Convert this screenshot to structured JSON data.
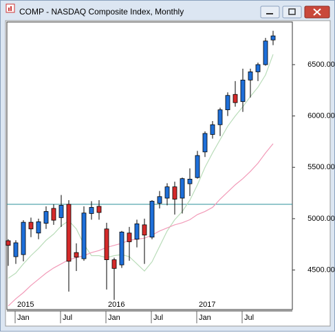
{
  "chart_data": {
    "type": "candlestick",
    "title": "COMP - NASDAQ Composite Index, Monthly",
    "categories": [
      null,
      "Jan",
      null,
      null,
      null,
      null,
      null,
      "Jul",
      null,
      null,
      null,
      null,
      null,
      "Jan",
      null,
      null,
      null,
      null,
      null,
      "Jul",
      null,
      null,
      null,
      null,
      null,
      "Jan",
      null,
      null,
      null,
      null,
      null,
      "Jul",
      null,
      null,
      null,
      null
    ],
    "years": [
      null,
      "2015",
      null,
      null,
      null,
      null,
      null,
      null,
      null,
      null,
      null,
      null,
      null,
      "2016",
      null,
      null,
      null,
      null,
      null,
      null,
      null,
      null,
      null,
      null,
      null,
      "2017",
      null,
      null,
      null,
      null,
      null,
      null,
      null,
      null,
      null,
      null
    ],
    "open": [
      4785,
      4630,
      4650,
      4965,
      4860,
      4955,
      5100,
      5010,
      5140,
      4670,
      4610,
      5050,
      5120,
      4900,
      4600,
      4550,
      4860,
      4800,
      4940,
      4820,
      5150,
      5200,
      5310,
      5200,
      5340,
      5400,
      5650,
      5820,
      5915,
      6060,
      6210,
      6140,
      6350,
      6430,
      6500,
      6740
    ],
    "high": [
      4800,
      4790,
      4985,
      5010,
      5000,
      5120,
      5140,
      5230,
      5180,
      4760,
      5120,
      5170,
      5180,
      4960,
      4620,
      4880,
      4920,
      4990,
      5000,
      5180,
      5270,
      5345,
      5360,
      5400,
      5490,
      5660,
      5850,
      5950,
      6080,
      6230,
      6340,
      6460,
      6460,
      6520,
      6760,
      6830
    ],
    "low": [
      4540,
      4560,
      4585,
      4820,
      4800,
      4900,
      4940,
      4920,
      4290,
      4490,
      4590,
      4990,
      4990,
      4310,
      4210,
      4520,
      4590,
      4720,
      4560,
      4800,
      5100,
      5130,
      5040,
      5050,
      5220,
      5390,
      5600,
      5780,
      5805,
      6000,
      6090,
      6040,
      6180,
      6340,
      6490,
      6690
    ],
    "close": [
      4740,
      4765,
      4965,
      4900,
      4970,
      5070,
      4985,
      5130,
      4585,
      4625,
      5055,
      5110,
      5060,
      4600,
      4515,
      4870,
      4775,
      4950,
      4840,
      5170,
      5215,
      5310,
      5190,
      5390,
      5385,
      5615,
      5830,
      5915,
      6060,
      6200,
      6130,
      6350,
      6430,
      6500,
      6730,
      6780
    ],
    "up_color": "#1e6fd9",
    "down_color": "#d42a2a",
    "lines": [
      {
        "color": "#b9dcb9",
        "values": [
          4420,
          4470,
          4560,
          4640,
          4710,
          4790,
          4850,
          4930,
          4980,
          4900,
          4750,
          4640,
          4640,
          4620,
          4640,
          4650,
          4630,
          4560,
          4490,
          4580,
          4730,
          4880,
          4990,
          5070,
          5180,
          5330,
          5500,
          5640,
          5770,
          5900,
          6000,
          6090,
          6190,
          6280,
          6400,
          6600
        ]
      },
      {
        "color": "#f29ab8",
        "values": [
          4150,
          4220,
          4280,
          4350,
          4410,
          4470,
          4520,
          4560,
          4600,
          4620,
          4640,
          4670,
          4690,
          4720,
          4740,
          4760,
          4790,
          4800,
          4810,
          4840,
          4880,
          4910,
          4940,
          4960,
          4990,
          5040,
          5070,
          5110,
          5190,
          5260,
          5330,
          5390,
          5460,
          5540,
          5640,
          5730
        ]
      }
    ],
    "hline": 5140,
    "hline_color": "#2a8f9a",
    "ylim": [
      4115,
      6915
    ],
    "yticks": [
      {
        "value": 4500,
        "label": "4500.00"
      },
      {
        "value": 5000,
        "label": "5000.00"
      },
      {
        "value": 5500,
        "label": "5500.00"
      },
      {
        "value": 6000,
        "label": "6000.00"
      },
      {
        "value": 6500,
        "label": "6500.00"
      }
    ]
  }
}
